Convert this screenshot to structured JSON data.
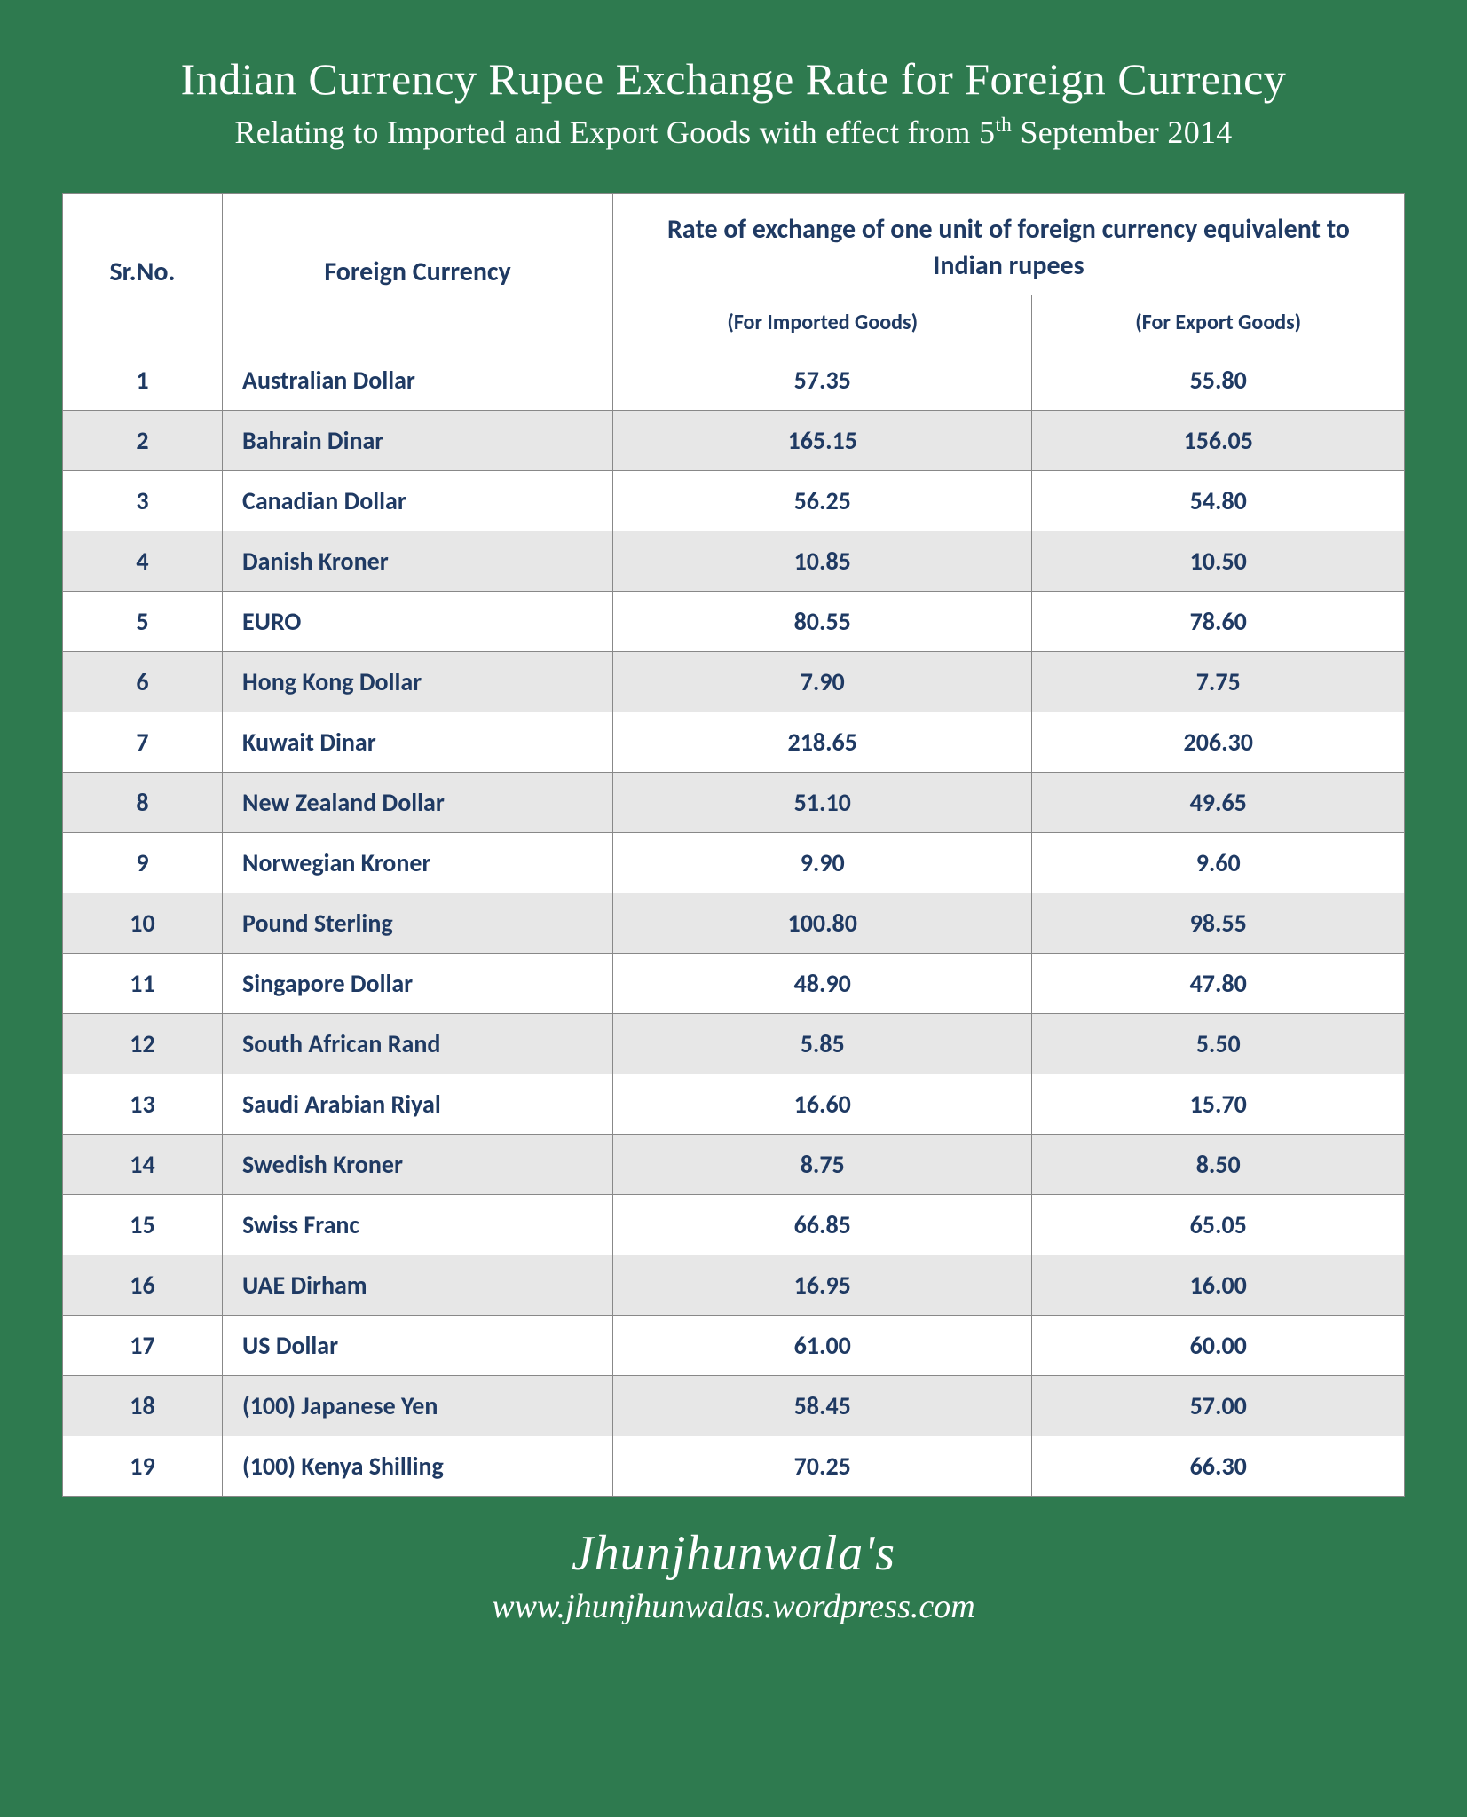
{
  "header": {
    "title": "Indian Currency Rupee Exchange Rate for Foreign Currency",
    "subtitle_html": "Relating to  Imported and Export Goods with effect  from 5<sup>th</sup> September 2014"
  },
  "table": {
    "columns": {
      "srno": "Sr.No.",
      "currency": "Foreign Currency",
      "rate_header": "Rate of exchange of one unit of foreign currency equivalent to Indian rupees",
      "imported": "(For Imported Goods)",
      "export": "(For Export Goods)"
    },
    "col_widths_pct": [
      12,
      29,
      29.5,
      29.5
    ],
    "header_fontsize": 30,
    "subheader_fontsize": 24,
    "cell_fontsize": 28,
    "text_color": "#1f3a63",
    "row_bg_odd": "#ffffff",
    "row_bg_even": "#e7e7e7",
    "border_color": "#888888",
    "rows": [
      {
        "sr": "1",
        "currency": "Australian Dollar",
        "imported": "57.35",
        "export": "55.80"
      },
      {
        "sr": "2",
        "currency": "Bahrain Dinar",
        "imported": "165.15",
        "export": "156.05"
      },
      {
        "sr": "3",
        "currency": "Canadian Dollar",
        "imported": "56.25",
        "export": "54.80"
      },
      {
        "sr": "4",
        "currency": "Danish Kroner",
        "imported": "10.85",
        "export": "10.50"
      },
      {
        "sr": "5",
        "currency": "EURO",
        "imported": "80.55",
        "export": "78.60"
      },
      {
        "sr": "6",
        "currency": "Hong Kong Dollar",
        "imported": "7.90",
        "export": "7.75"
      },
      {
        "sr": "7",
        "currency": "Kuwait Dinar",
        "imported": "218.65",
        "export": "206.30"
      },
      {
        "sr": "8",
        "currency": "New Zealand Dollar",
        "imported": "51.10",
        "export": "49.65"
      },
      {
        "sr": "9",
        "currency": "Norwegian Kroner",
        "imported": "9.90",
        "export": "9.60"
      },
      {
        "sr": "10",
        "currency": "Pound Sterling",
        "imported": "100.80",
        "export": "98.55"
      },
      {
        "sr": "11",
        "currency": "Singapore Dollar",
        "imported": "48.90",
        "export": "47.80"
      },
      {
        "sr": "12",
        "currency": "South African Rand",
        "imported": "5.85",
        "export": "5.50"
      },
      {
        "sr": "13",
        "currency": "Saudi Arabian Riyal",
        "imported": "16.60",
        "export": "15.70"
      },
      {
        "sr": "14",
        "currency": "Swedish Kroner",
        "imported": "8.75",
        "export": "8.50"
      },
      {
        "sr": "15",
        "currency": "Swiss Franc",
        "imported": "66.85",
        "export": "65.05"
      },
      {
        "sr": "16",
        "currency": "UAE Dirham",
        "imported": "16.95",
        "export": "16.00"
      },
      {
        "sr": "17",
        "currency": "US Dollar",
        "imported": "61.00",
        "export": "60.00"
      },
      {
        "sr": "18",
        "currency": "(100) Japanese Yen",
        "imported": "58.45",
        "export": "57.00"
      },
      {
        "sr": "19",
        "currency": "(100) Kenya Shilling",
        "imported": "70.25",
        "export": "66.30"
      }
    ]
  },
  "footer": {
    "brand": "Jhunjhunwala's",
    "url": "www.jhunjhunwalas.wordpress.com"
  },
  "style": {
    "page_bg": "#2e7a4f",
    "title_color": "#ffffff",
    "title_fontsize": 50,
    "subtitle_fontsize": 36,
    "brand_fontsize": 56,
    "url_fontsize": 38
  }
}
